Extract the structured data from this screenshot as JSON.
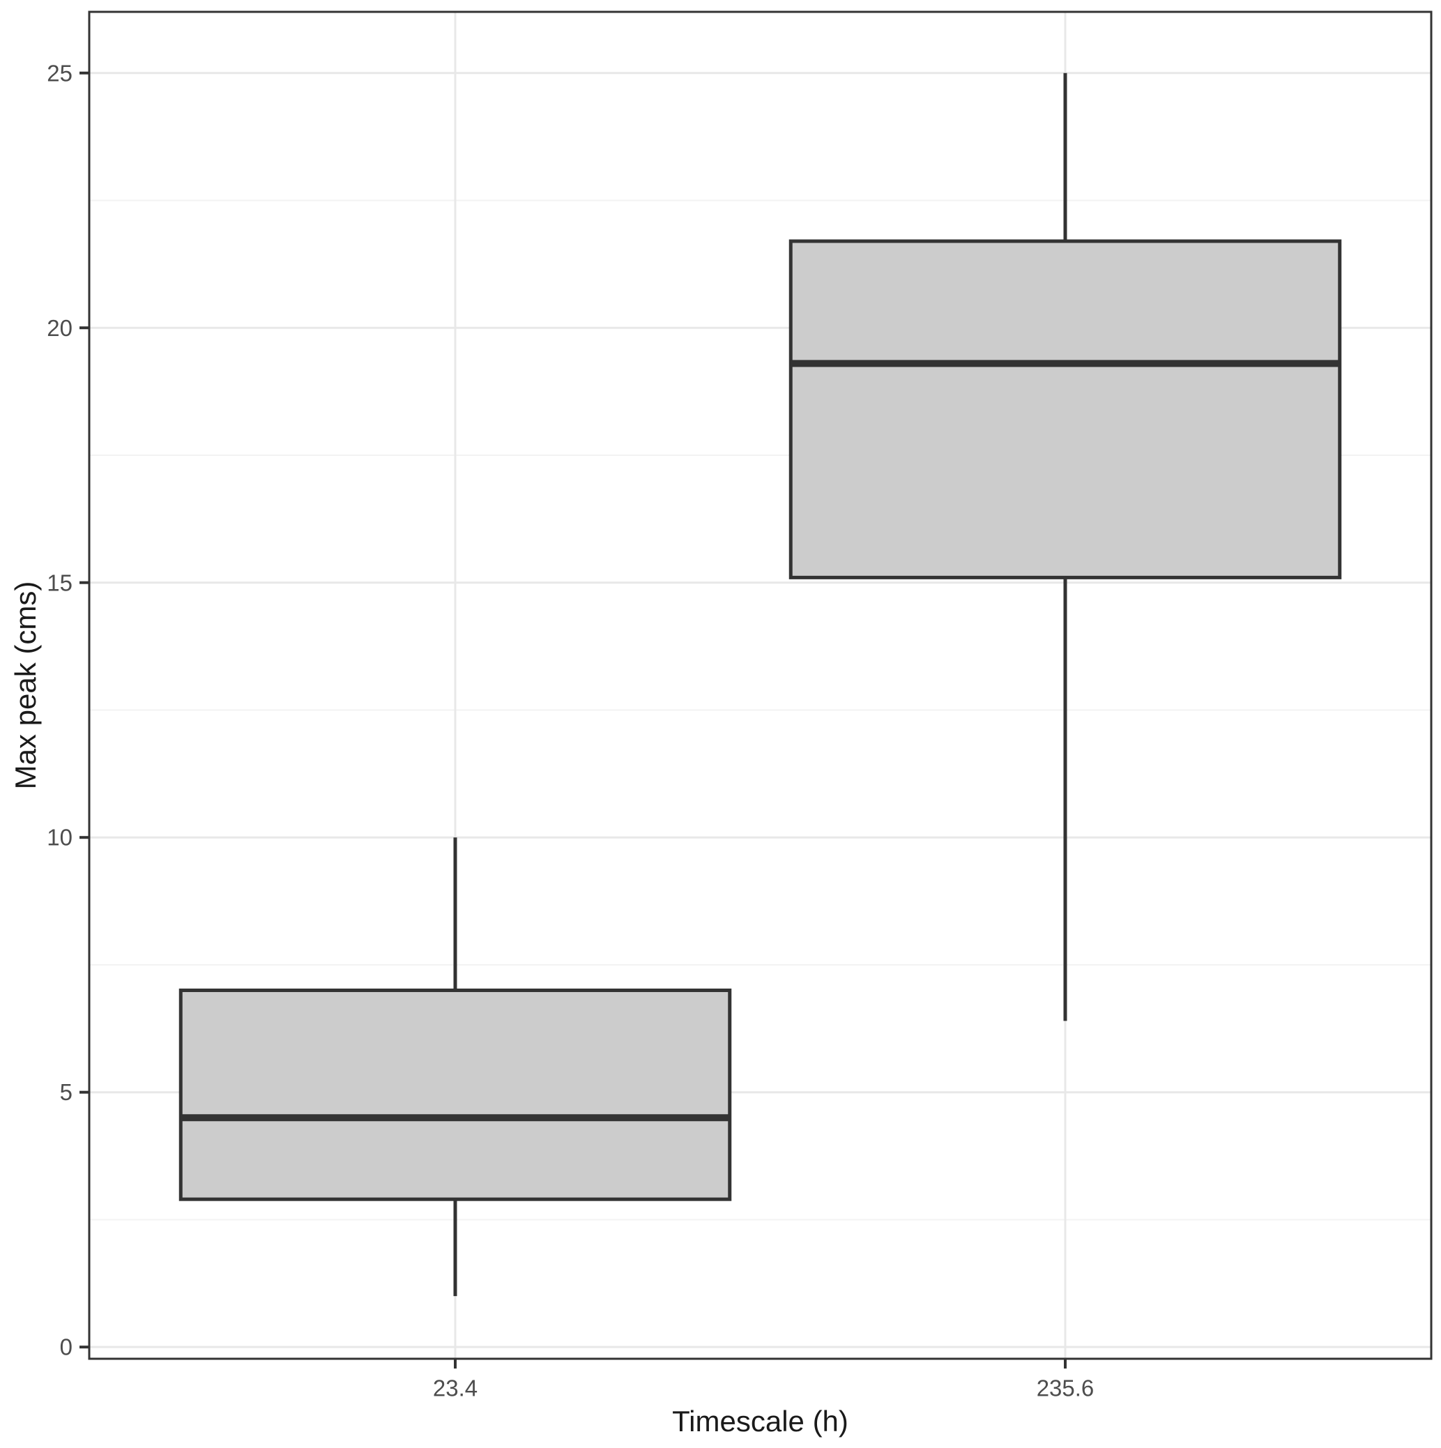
{
  "figure": {
    "background_color": "#ffffff"
  },
  "chart_data": {
    "type": "boxplot",
    "title": "",
    "xlabel": "Timescale (h)",
    "ylabel": "Max peak (cms)",
    "categories": [
      "23.4",
      "235.6"
    ],
    "series": [
      {
        "category": "23.4",
        "whisker_low": 1.0,
        "q1": 2.9,
        "median": 4.5,
        "q3": 7.0,
        "whisker_high": 10.0
      },
      {
        "category": "235.6",
        "whisker_low": 6.4,
        "q1": 15.1,
        "median": 19.3,
        "q3": 21.7,
        "whisker_high": 25.0
      }
    ],
    "y_ticks": [
      0,
      5,
      10,
      15,
      20,
      25
    ],
    "y_tick_labels": [
      "0",
      "5",
      "10",
      "15",
      "20",
      "25"
    ],
    "y_minor_ticks": [
      2.5,
      7.5,
      12.5,
      17.5,
      22.5
    ],
    "ylim": [
      -0.23,
      26.2
    ],
    "grid": "horizontal major+minor, vertical at category centers",
    "legend": "none"
  },
  "style": {
    "box_fill": "#cccccc",
    "box_stroke": "#333333",
    "panel_border": "#333333",
    "grid_major": "#e8e8e8",
    "grid_minor": "#f3f3f3",
    "tick_mark": "#333333",
    "tick_label_color": "#4d4d4d",
    "axis_title_color": "#1a1a1a",
    "panel_background": "#ffffff"
  }
}
